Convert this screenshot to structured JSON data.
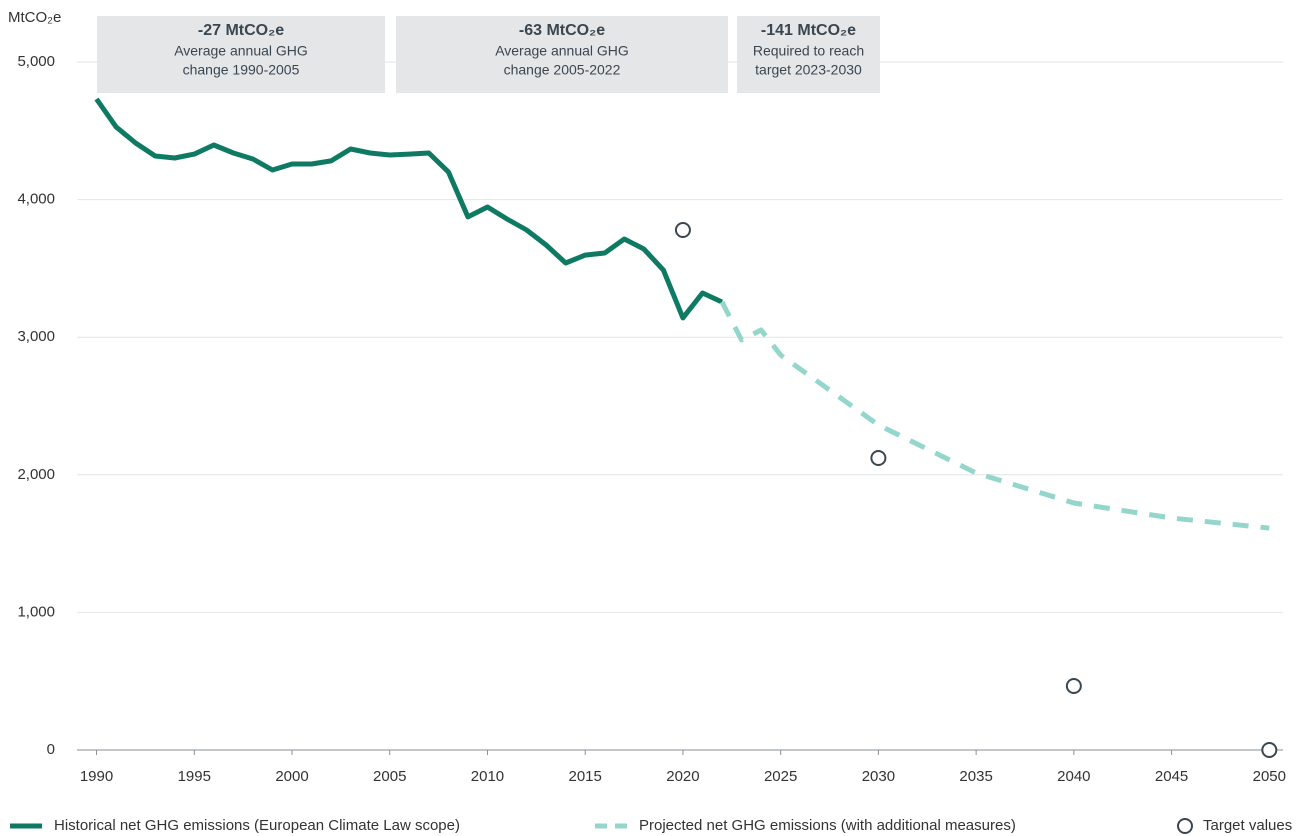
{
  "chart_data": {
    "type": "line",
    "y_axis_label": "MtCO₂e",
    "xlim": [
      1989,
      2050.7
    ],
    "ylim": [
      0,
      5000
    ],
    "xticks": [
      1990,
      1995,
      2000,
      2005,
      2010,
      2015,
      2020,
      2025,
      2030,
      2035,
      2040,
      2045,
      2050
    ],
    "yticks": [
      0,
      {
        "value": 1000,
        "label": "1,000"
      },
      {
        "value": 2000,
        "label": "2,000"
      },
      {
        "value": 3000,
        "label": "3,000"
      },
      {
        "value": 4000,
        "label": "4,000"
      },
      {
        "value": 5000,
        "label": "5,000"
      }
    ],
    "grid": true,
    "legend": "bottom",
    "annotations": [
      {
        "title": "-27 MtCO₂e",
        "lines": [
          "Average annual GHG",
          "change 1990-2005"
        ]
      },
      {
        "title": "-63 MtCO₂e",
        "lines": [
          "Average annual GHG",
          "change 2005-2022"
        ]
      },
      {
        "title": "-141 MtCO₂e",
        "lines": [
          "Required to reach",
          "target 2023-2030"
        ]
      }
    ],
    "series": [
      {
        "name": "Historical net GHG emissions (European Climate Law scope)",
        "color": "#0e7a64",
        "style": "solid",
        "x": [
          1990,
          1991,
          1992,
          1993,
          1994,
          1995,
          1996,
          1997,
          1998,
          1999,
          2000,
          2001,
          2002,
          2003,
          2004,
          2005,
          2006,
          2007,
          2008,
          2009,
          2010,
          2011,
          2012,
          2013,
          2014,
          2015,
          2016,
          2017,
          2018,
          2019,
          2020,
          2021,
          2022
        ],
        "values": [
          4731,
          4528,
          4411,
          4317,
          4302,
          4331,
          4397,
          4339,
          4295,
          4215,
          4259,
          4259,
          4281,
          4368,
          4339,
          4324,
          4331,
          4339,
          4201,
          3874,
          3946,
          3859,
          3779,
          3670,
          3539,
          3597,
          3612,
          3714,
          3641,
          3488,
          3140,
          3321,
          3256
        ]
      },
      {
        "name": "Projected net GHG emissions (with additional measures)",
        "color": "#94d5cc",
        "style": "dashed",
        "x": [
          2022,
          2023,
          2024,
          2025,
          2030,
          2035,
          2040,
          2045,
          2050
        ],
        "values": [
          3256,
          2980,
          3052,
          2870,
          2362,
          2013,
          1795,
          1686,
          1613
        ]
      },
      {
        "name": "Target values",
        "color": "#3a4750",
        "style": "marker",
        "x": [
          2020,
          2030,
          2040,
          2050
        ],
        "values": [
          3779,
          2122,
          465,
          0
        ]
      }
    ]
  }
}
